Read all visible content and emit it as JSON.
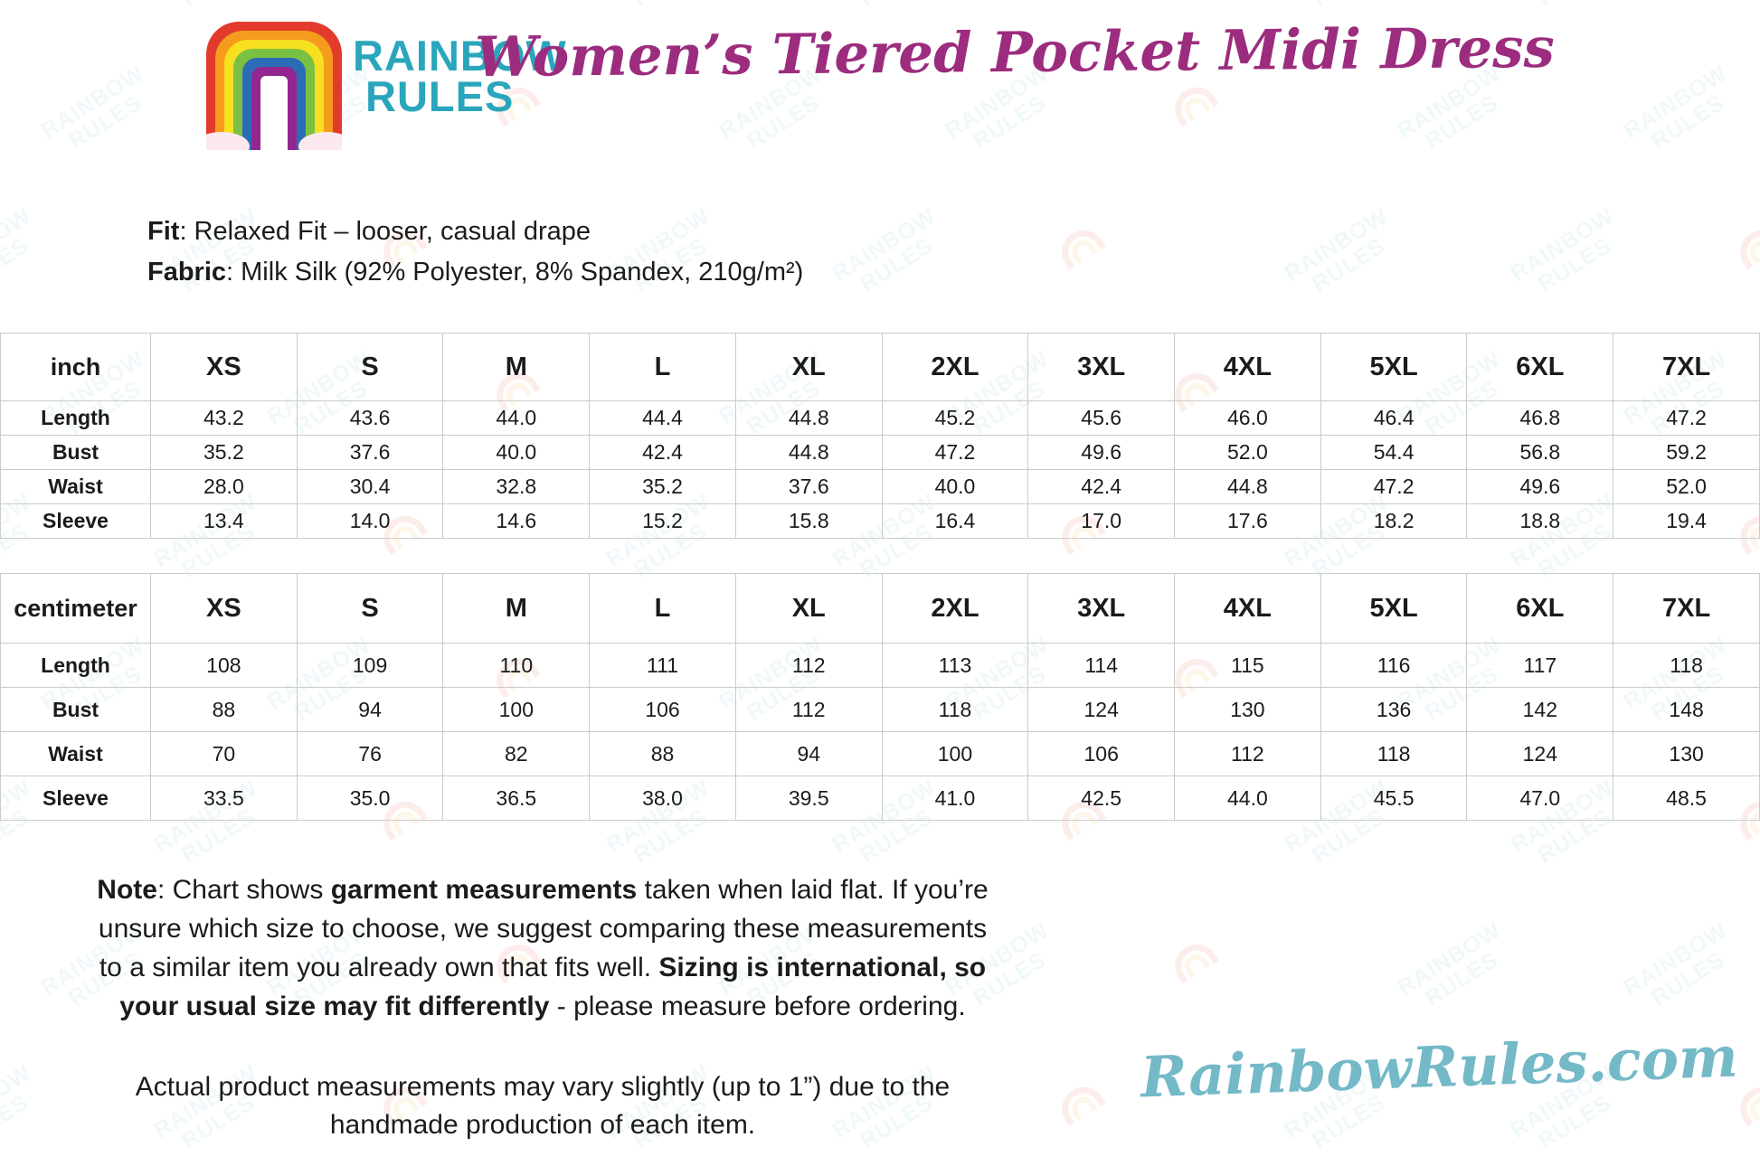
{
  "header": {
    "logo_line1": "RAINBOW",
    "logo_line2": "RULES",
    "title": "Women’s Tiered Pocket Midi Dress"
  },
  "product": {
    "fit_label": "Fit",
    "fit_text": ": Relaxed Fit – looser, casual drape",
    "fabric_label": "Fabric",
    "fabric_text": ": Milk Silk (92% Polyester, 8% Spandex, 210g/m²)"
  },
  "size_chart": {
    "sizes": [
      "XS",
      "S",
      "M",
      "L",
      "XL",
      "2XL",
      "3XL",
      "4XL",
      "5XL",
      "6XL",
      "7XL"
    ],
    "tables": [
      {
        "unit": "inch",
        "rows": [
          {
            "label": "Length",
            "values": [
              "43.2",
              "43.6",
              "44.0",
              "44.4",
              "44.8",
              "45.2",
              "45.6",
              "46.0",
              "46.4",
              "46.8",
              "47.2"
            ]
          },
          {
            "label": "Bust",
            "values": [
              "35.2",
              "37.6",
              "40.0",
              "42.4",
              "44.8",
              "47.2",
              "49.6",
              "52.0",
              "54.4",
              "56.8",
              "59.2"
            ]
          },
          {
            "label": "Waist",
            "values": [
              "28.0",
              "30.4",
              "32.8",
              "35.2",
              "37.6",
              "40.0",
              "42.4",
              "44.8",
              "47.2",
              "49.6",
              "52.0"
            ]
          },
          {
            "label": "Sleeve",
            "values": [
              "13.4",
              "14.0",
              "14.6",
              "15.2",
              "15.8",
              "16.4",
              "17.0",
              "17.6",
              "18.2",
              "18.8",
              "19.4"
            ]
          }
        ]
      },
      {
        "unit": "centimeter",
        "rows": [
          {
            "label": "Length",
            "values": [
              "108",
              "109",
              "110",
              "111",
              "112",
              "113",
              "114",
              "115",
              "116",
              "117",
              "118"
            ]
          },
          {
            "label": "Bust",
            "values": [
              "88",
              "94",
              "100",
              "106",
              "112",
              "118",
              "124",
              "130",
              "136",
              "142",
              "148"
            ]
          },
          {
            "label": "Waist",
            "values": [
              "70",
              "76",
              "82",
              "88",
              "94",
              "100",
              "106",
              "112",
              "118",
              "124",
              "130"
            ]
          },
          {
            "label": "Sleeve",
            "values": [
              "33.5",
              "35.0",
              "36.5",
              "38.0",
              "39.5",
              "41.0",
              "42.5",
              "44.0",
              "45.5",
              "47.0",
              "48.5"
            ]
          }
        ]
      }
    ]
  },
  "notes": {
    "note_label": "Note",
    "t1": ": Chart shows ",
    "b1": "garment measurements",
    "t2": " taken when laid flat. If you’re unsure which size to choose, we suggest comparing these measurements to a similar item you already own that fits well. ",
    "b2": "Sizing is international, so your usual size may fit differently",
    "t3": " - please measure before ordering.",
    "para2": "Actual product measurements may vary slightly (up to 1”) due to the handmade production of each item."
  },
  "footer": {
    "site": "RainbowRules.com"
  },
  "watermark": {
    "line1": "RAINBOW",
    "line2": "RULES"
  },
  "colors": {
    "accent_teal": "#2aa6bc",
    "accent_magenta": "#9c2c7e",
    "footer_teal": "#74b9c7",
    "table_border": "#cbcbcb",
    "cloud_pink": "#fbe9ee",
    "watermark_red": "#e8432c",
    "watermark_orange": "#f5a01d",
    "rainbow": [
      "#e23b2e",
      "#f59b1e",
      "#f7e01f",
      "#7ac143",
      "#2c6cb7",
      "#93278f",
      "#ffffff"
    ]
  }
}
